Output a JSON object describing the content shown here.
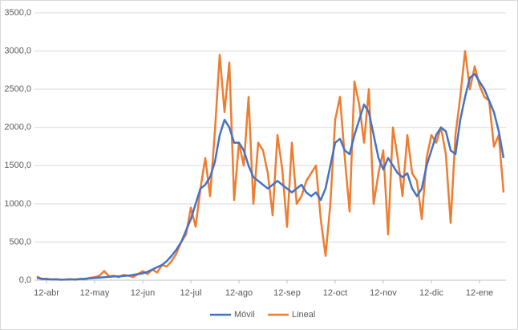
{
  "chart_data": {
    "type": "line",
    "categories": [
      null,
      null,
      "12-abr",
      null,
      null,
      null,
      null,
      null,
      null,
      null,
      null,
      null,
      "12-may",
      null,
      null,
      null,
      null,
      null,
      null,
      null,
      null,
      null,
      "12-jun",
      null,
      null,
      null,
      null,
      null,
      null,
      null,
      null,
      null,
      "12-jul",
      null,
      null,
      null,
      null,
      null,
      null,
      null,
      null,
      null,
      "12-ago",
      null,
      null,
      null,
      null,
      null,
      null,
      null,
      null,
      null,
      "12-sep",
      null,
      null,
      null,
      null,
      null,
      null,
      null,
      null,
      null,
      "12-oct",
      null,
      null,
      null,
      null,
      null,
      null,
      null,
      null,
      null,
      "12-nov",
      null,
      null,
      null,
      null,
      null,
      null,
      null,
      null,
      null,
      "12-dic",
      null,
      null,
      null,
      null,
      null,
      null,
      null,
      null,
      null,
      "12-ene",
      null,
      null,
      null,
      null,
      null
    ],
    "series": [
      {
        "name": "Móvil",
        "color": "#4472c4",
        "values": [
          30,
          20,
          15,
          10,
          10,
          8,
          8,
          10,
          12,
          15,
          20,
          25,
          30,
          35,
          40,
          45,
          50,
          50,
          55,
          60,
          70,
          80,
          90,
          110,
          140,
          170,
          200,
          250,
          320,
          400,
          500,
          650,
          800,
          1000,
          1200,
          1250,
          1350,
          1550,
          1900,
          2100,
          2000,
          1800,
          1800,
          1700,
          1500,
          1350,
          1300,
          1250,
          1200,
          1250,
          1300,
          1250,
          1200,
          1150,
          1200,
          1250,
          1150,
          1100,
          1150,
          1050,
          1200,
          1500,
          1800,
          1850,
          1700,
          1650,
          1900,
          2100,
          2300,
          2200,
          1900,
          1600,
          1450,
          1600,
          1500,
          1400,
          1350,
          1400,
          1200,
          1100,
          1200,
          1500,
          1700,
          1900,
          2000,
          1950,
          1700,
          1650,
          2100,
          2400,
          2650,
          2700,
          2600,
          2500,
          2350,
          2200,
          1950,
          1600
        ]
      },
      {
        "name": "Lineal",
        "color": "#ed7d31",
        "values": [
          50,
          15,
          20,
          10,
          15,
          5,
          10,
          15,
          5,
          20,
          10,
          30,
          40,
          60,
          120,
          50,
          60,
          40,
          70,
          60,
          40,
          80,
          120,
          80,
          140,
          100,
          200,
          180,
          250,
          350,
          500,
          600,
          950,
          700,
          1200,
          1600,
          1100,
          1950,
          2950,
          2200,
          2850,
          1050,
          1800,
          1500,
          2400,
          1000,
          1800,
          1700,
          1400,
          850,
          1900,
          1450,
          700,
          1800,
          1000,
          1100,
          1300,
          1400,
          1500,
          800,
          320,
          1000,
          2100,
          2400,
          1600,
          900,
          2600,
          2300,
          1800,
          2500,
          1000,
          1400,
          1700,
          600,
          2000,
          1600,
          1100,
          1900,
          1400,
          1300,
          800,
          1600,
          1900,
          1800,
          2000,
          1650,
          750,
          1900,
          2400,
          3000,
          2500,
          2800,
          2550,
          2400,
          2350,
          1750,
          1900,
          1150
        ]
      }
    ],
    "ylim": [
      0,
      3500
    ],
    "yticks": [
      {
        "value": 0,
        "label": "0,0"
      },
      {
        "value": 500,
        "label": "500,0"
      },
      {
        "value": 1000,
        "label": "1000,0"
      },
      {
        "value": 1500,
        "label": "1500,0"
      },
      {
        "value": 2000,
        "label": "2000,0"
      },
      {
        "value": 2500,
        "label": "2500,0"
      },
      {
        "value": 3000,
        "label": "3000,0"
      },
      {
        "value": 3500,
        "label": "3500,0"
      }
    ],
    "grid": true,
    "legend": "bottom"
  }
}
